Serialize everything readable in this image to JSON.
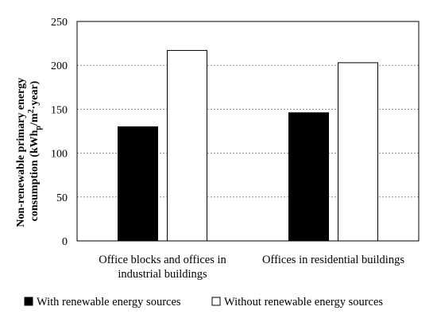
{
  "chart_data": {
    "type": "bar",
    "categories": [
      [
        "Office blocks and offices in",
        "industrial buildings"
      ],
      [
        "Offices in residential buildings"
      ]
    ],
    "series": [
      {
        "name": "With renewable energy sources",
        "values": [
          130,
          146
        ],
        "color": "#000000"
      },
      {
        "name": "Without renewable energy sources",
        "values": [
          217,
          203
        ],
        "color": "#ffffff"
      }
    ],
    "ylabel": {
      "line1": "Non-renewable primary energy",
      "line2_prefix": "consumption (kWh",
      "line2_sub": "p",
      "line2_mid": "/m",
      "line2_sup": "2",
      "line2_suffix": "·year)"
    },
    "ylim": [
      0,
      250
    ],
    "yticks": [
      0,
      50,
      100,
      150,
      200,
      250
    ],
    "grid": true,
    "legend_position": "bottom"
  }
}
